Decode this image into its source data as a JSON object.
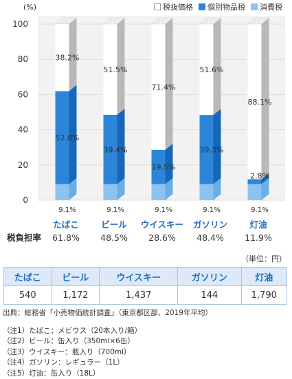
{
  "chart_data": {
    "type": "bar",
    "stacked": true,
    "ylabel": "(%)",
    "ylim": [
      0,
      100
    ],
    "yticks": [
      0,
      20,
      40,
      60,
      80,
      100
    ],
    "categories": [
      "たばこ",
      "ビール",
      "ウイスキー",
      "ガソリン",
      "灯油"
    ],
    "series": [
      {
        "name": "消費税",
        "values": [
          9.1,
          9.1,
          9.1,
          9.1,
          9.1
        ],
        "labels": [
          "9.1%",
          "9.1%",
          "9.1%",
          "9.1%",
          "9.1%"
        ]
      },
      {
        "name": "個別物品税",
        "values": [
          52.8,
          39.4,
          19.5,
          39.3,
          2.8
        ],
        "labels": [
          "52.8%",
          "39.4%",
          "19.5%",
          "39.3%",
          "2.8%"
        ]
      },
      {
        "name": "税抜価格",
        "values": [
          38.2,
          51.5,
          71.4,
          51.6,
          88.1
        ],
        "labels": [
          "38.2%",
          "51.5%",
          "71.4%",
          "51.6%",
          "88.1%"
        ]
      }
    ],
    "legend": [
      "税抜価格",
      "個別物品税",
      "消費税"
    ],
    "legend_position": "top-right",
    "tax_burden_label": "税負担率",
    "tax_burden": [
      "61.8%",
      "48.5%",
      "28.6%",
      "48.4%",
      "11.9%"
    ]
  },
  "colors": {
    "consumption": "#8ec3ef",
    "consumption_side": "#6aaee6",
    "excise": "#2b86d9",
    "excise_side": "#1766b8",
    "base": "#ffffff",
    "base_side": "#b8b8b8",
    "category_text": "#1f6fc5",
    "table_header_bg": "#dde9f8"
  },
  "unit_label": "（単位：円）",
  "price_table": {
    "headers": [
      "たばこ",
      "ビール",
      "ウイスキー",
      "ガソリン",
      "灯油"
    ],
    "values": [
      "540",
      "1,172",
      "1,437",
      "144",
      "1,790"
    ]
  },
  "source": "出典：総務省「小売物価統計調査」（東京都区部、2019年平均）",
  "notes": [
    "（注1）たばこ：メビウス（20本入り/箱）",
    "（注2）ビール：缶入り（350ml×6缶）",
    "（注3）ウイスキー：瓶入り（700ml）",
    "（注4）ガソリン：レギュラー（1L）",
    "（注5）灯油：缶入り（18L）"
  ]
}
